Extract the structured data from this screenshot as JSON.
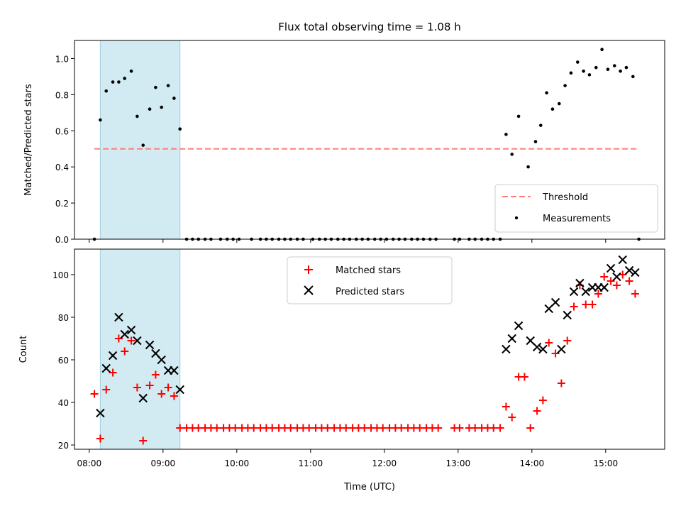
{
  "colors": {
    "background": "#ffffff",
    "axes": "#000000",
    "shade": "#add8e6",
    "threshold": "#ff7f7f",
    "matched": "#ff0000",
    "predicted": "#000000",
    "measurement": "#000000"
  },
  "chart_data": [
    {
      "type": "scatter",
      "title": "Flux total observing time = 1.08 h",
      "xlabel": "",
      "ylabel": "Matched/Predicted stars",
      "xlim": [
        7.8,
        15.8
      ],
      "ylim": [
        0,
        1.1
      ],
      "xticks": [
        8,
        9,
        10,
        11,
        12,
        13,
        14,
        15
      ],
      "yticks": [
        0.0,
        0.2,
        0.4,
        0.6,
        0.8,
        1.0
      ],
      "ytick_labels": [
        "0.0",
        "0.2",
        "0.4",
        "0.6",
        "0.8",
        "1.0"
      ],
      "shaded_span": [
        8.15,
        9.23
      ],
      "threshold": {
        "value": 0.5,
        "x_range": [
          8.07,
          15.42
        ],
        "style": "dashed"
      },
      "legend": {
        "location": "lower right",
        "entries": [
          "Threshold",
          "Measurements"
        ]
      },
      "series": [
        {
          "name": "Measurements",
          "marker": "dot",
          "x": [
            8.07,
            8.15,
            8.23,
            8.32,
            8.4,
            8.48,
            8.57,
            8.65,
            8.73,
            8.82,
            8.9,
            8.98,
            9.07,
            9.15,
            9.23,
            9.32,
            9.4,
            9.48,
            9.57,
            9.65,
            9.78,
            9.87,
            9.95,
            10.03,
            10.2,
            10.32,
            10.4,
            10.48,
            10.57,
            10.65,
            10.73,
            10.82,
            10.9,
            11.03,
            11.12,
            11.2,
            11.28,
            11.37,
            11.45,
            11.53,
            11.62,
            11.7,
            11.78,
            11.87,
            11.95,
            12.03,
            12.12,
            12.2,
            12.28,
            12.37,
            12.45,
            12.53,
            12.62,
            12.7,
            12.95,
            13.02,
            13.15,
            13.23,
            13.32,
            13.4,
            13.48,
            13.57,
            13.65,
            13.73,
            13.82,
            13.95,
            14.05,
            14.12,
            14.2,
            14.28,
            14.37,
            14.45,
            14.53,
            14.62,
            14.7,
            14.78,
            14.87,
            14.95,
            15.03,
            15.12,
            15.2,
            15.28,
            15.37,
            15.45
          ],
          "y": [
            0.0,
            0.66,
            0.82,
            0.87,
            0.87,
            0.89,
            0.93,
            0.68,
            0.52,
            0.72,
            0.84,
            0.73,
            0.85,
            0.78,
            0.61,
            0.0,
            0.0,
            0.0,
            0.0,
            0.0,
            0.0,
            0.0,
            0.0,
            0.0,
            0.0,
            0.0,
            0.0,
            0.0,
            0.0,
            0.0,
            0.0,
            0.0,
            0.0,
            0.0,
            0.0,
            0.0,
            0.0,
            0.0,
            0.0,
            0.0,
            0.0,
            0.0,
            0.0,
            0.0,
            0.0,
            0.0,
            0.0,
            0.0,
            0.0,
            0.0,
            0.0,
            0.0,
            0.0,
            0.0,
            0.0,
            0.0,
            0.0,
            0.0,
            0.0,
            0.0,
            0.0,
            0.0,
            0.58,
            0.47,
            0.68,
            0.4,
            0.54,
            0.63,
            0.81,
            0.72,
            0.75,
            0.85,
            0.92,
            0.98,
            0.93,
            0.91,
            0.95,
            1.05,
            0.94,
            0.96,
            0.93,
            0.95,
            0.9,
            0.0
          ]
        }
      ]
    },
    {
      "type": "scatter",
      "title": "",
      "xlabel": "Time (UTC)",
      "ylabel": "Count",
      "xlim": [
        7.8,
        15.8
      ],
      "ylim": [
        18,
        112
      ],
      "xticks": [
        8,
        9,
        10,
        11,
        12,
        13,
        14,
        15
      ],
      "xtick_labels": [
        "08:00",
        "09:00",
        "10:00",
        "11:00",
        "12:00",
        "13:00",
        "14:00",
        "15:00"
      ],
      "yticks": [
        20,
        40,
        60,
        80,
        100
      ],
      "ytick_labels": [
        "20",
        "40",
        "60",
        "80",
        "100"
      ],
      "shaded_span": [
        8.15,
        9.23
      ],
      "legend": {
        "location": "upper center",
        "entries": [
          "Matched stars",
          "Predicted stars"
        ]
      },
      "series": [
        {
          "name": "Matched stars",
          "marker": "plus",
          "x": [
            8.07,
            8.15,
            8.23,
            8.32,
            8.4,
            8.48,
            8.57,
            8.65,
            8.73,
            8.82,
            8.9,
            8.98,
            9.07,
            9.15,
            9.23,
            9.32,
            9.4,
            9.48,
            9.57,
            9.65,
            9.73,
            9.82,
            9.9,
            9.98,
            10.07,
            10.15,
            10.23,
            10.32,
            10.4,
            10.48,
            10.57,
            10.65,
            10.73,
            10.82,
            10.9,
            10.98,
            11.07,
            11.15,
            11.23,
            11.32,
            11.4,
            11.48,
            11.57,
            11.65,
            11.73,
            11.82,
            11.9,
            11.98,
            12.07,
            12.15,
            12.23,
            12.32,
            12.4,
            12.48,
            12.57,
            12.65,
            12.73,
            12.95,
            13.02,
            13.15,
            13.23,
            13.32,
            13.4,
            13.48,
            13.57,
            13.65,
            13.73,
            13.82,
            13.9,
            13.98,
            14.07,
            14.15,
            14.23,
            14.32,
            14.4,
            14.48,
            14.57,
            14.65,
            14.73,
            14.82,
            14.9,
            14.98,
            15.07,
            15.15,
            15.23,
            15.32,
            15.4
          ],
          "y": [
            44,
            23,
            46,
            54,
            70,
            64,
            69,
            47,
            22,
            48,
            53,
            44,
            47,
            43,
            28,
            28,
            28,
            28,
            28,
            28,
            28,
            28,
            28,
            28,
            28,
            28,
            28,
            28,
            28,
            28,
            28,
            28,
            28,
            28,
            28,
            28,
            28,
            28,
            28,
            28,
            28,
            28,
            28,
            28,
            28,
            28,
            28,
            28,
            28,
            28,
            28,
            28,
            28,
            28,
            28,
            28,
            28,
            28,
            28,
            28,
            28,
            28,
            28,
            28,
            28,
            38,
            33,
            52,
            52,
            28,
            36,
            41,
            68,
            63,
            49,
            69,
            85,
            95,
            86,
            86,
            91,
            99,
            97,
            95,
            100,
            97,
            91
          ]
        },
        {
          "name": "Predicted stars",
          "marker": "x",
          "x": [
            8.15,
            8.23,
            8.32,
            8.4,
            8.48,
            8.57,
            8.65,
            8.73,
            8.82,
            8.9,
            8.98,
            9.07,
            9.15,
            9.23,
            13.65,
            13.73,
            13.82,
            13.98,
            14.07,
            14.15,
            14.23,
            14.32,
            14.4,
            14.48,
            14.57,
            14.65,
            14.73,
            14.82,
            14.9,
            14.98,
            15.07,
            15.15,
            15.23,
            15.32,
            15.4
          ],
          "y": [
            35,
            56,
            62,
            80,
            72,
            74,
            69,
            42,
            67,
            63,
            60,
            55,
            55,
            46,
            65,
            70,
            76,
            69,
            66,
            65,
            84,
            87,
            65,
            81,
            92,
            96,
            92,
            94,
            94,
            94,
            103,
            99,
            107,
            102,
            101
          ]
        }
      ]
    }
  ]
}
